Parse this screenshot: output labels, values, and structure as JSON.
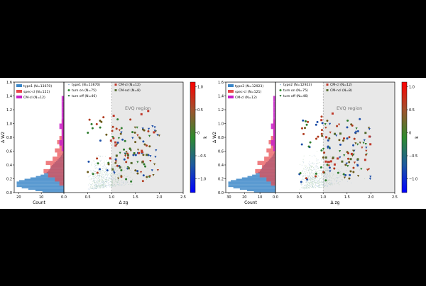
{
  "colors": {
    "type1": "#3a86c8",
    "type2": "#3a86c8",
    "spec_cl": "#e8474c",
    "cm_cl": "#c81fc8",
    "turn_on": "#2e8b2e",
    "turn_off": "#2f7a3a",
    "cm_cl_marker": "#c0392b",
    "cm_ncl_marker": "#556b2f",
    "evq_region": "#e8e8e8"
  },
  "chart_data": [
    {
      "type": "scatter",
      "panel": "left",
      "xlabel": "Δ zg",
      "ylabel": "Δ W2",
      "xlim": [
        0,
        2.5
      ],
      "ylim": [
        0,
        1.6
      ],
      "x_ticks": [
        "0.5",
        "1.0",
        "1.5",
        "2.0",
        "2.5"
      ],
      "y_ticks": [
        "0.0",
        "0.2",
        "0.4",
        "0.6",
        "0.8",
        "1.0",
        "1.2",
        "1.4",
        "1.6"
      ],
      "evq_region": {
        "label": "EVQ region",
        "x_min": 1.0,
        "y_min": 0.0
      },
      "legend": [
        "type1 (N=13670)",
        "turn on (N=75)",
        "turn off (N=46)",
        "CM-cl (N=12)",
        "CM-ncl (N=8)"
      ],
      "hist": {
        "xlabel": "Count",
        "x_ticks": [
          "20",
          "10",
          "0.0"
        ],
        "xlim": [
          22,
          0
        ],
        "legend": [
          "type1 (N=13670)",
          "spec-cl (N=121)",
          "CM-cl (N=12)"
        ]
      },
      "colorbar": {
        "label": "k",
        "ticks": [
          "1.0",
          "0.5",
          "0",
          "−0.5",
          "−1.0"
        ],
        "range": [
          -1.3,
          1.1
        ]
      }
    },
    {
      "type": "scatter",
      "panel": "right",
      "xlabel": "Δ zg",
      "ylabel": "Δ W2",
      "xlim": [
        0,
        2.5
      ],
      "ylim": [
        0,
        1.6
      ],
      "x_ticks": [
        "0.5",
        "1.0",
        "1.5",
        "2.0",
        "2.5"
      ],
      "y_ticks": [
        "0.0",
        "0.2",
        "0.4",
        "0.6",
        "0.8",
        "1.0",
        "1.2",
        "1.4",
        "1.6"
      ],
      "evq_region": {
        "label": "EVQ region",
        "x_min": 1.0,
        "y_min": 0.0
      },
      "legend": [
        "type2 (N=12923)",
        "turn on (N=75)",
        "turn off (N=46)",
        "CM-cl (N=12)",
        "CM-ncl (N=8)"
      ],
      "hist": {
        "xlabel": "Count",
        "x_ticks": [
          "30",
          "20",
          "10",
          "0.0"
        ],
        "xlim": [
          32,
          0
        ],
        "legend": [
          "type2 (N=12923)",
          "spec-cl (N=121)",
          "CM-cl (N=12)"
        ]
      },
      "colorbar": {
        "label": "k",
        "ticks": [
          "1.0",
          "0.5",
          "0",
          "−0.5",
          "−1.0"
        ],
        "range": [
          -1.3,
          1.1
        ]
      }
    }
  ]
}
